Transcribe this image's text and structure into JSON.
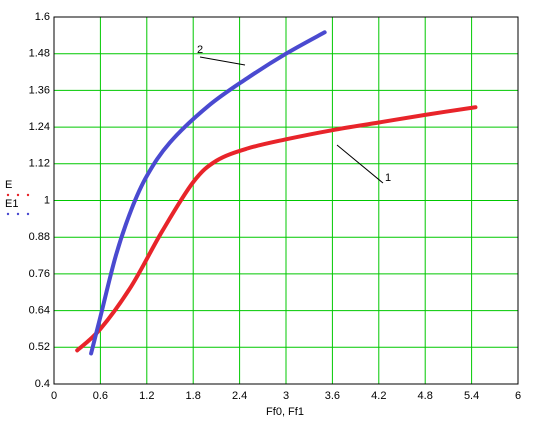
{
  "chart_data": {
    "type": "line",
    "x_label": "Ff0, Ff1",
    "xlim": [
      0,
      6
    ],
    "xticks": [
      0,
      0.6,
      1.2,
      1.8,
      2.4,
      3,
      3.6,
      4.2,
      4.8,
      5.4,
      6
    ],
    "ylim": [
      0.4,
      1.6
    ],
    "yticks": [
      0.4,
      0.52,
      0.64,
      0.76,
      0.88,
      1,
      1.12,
      1.24,
      1.36,
      1.48,
      1.6
    ],
    "grid": true,
    "grid_color": "#00c800",
    "series": [
      {
        "name": "E",
        "color": "#e8242a",
        "x": [
          0.3,
          0.6,
          1.0,
          1.4,
          1.8,
          2.1,
          2.5,
          3.0,
          3.6,
          4.2,
          4.8,
          5.45
        ],
        "values": [
          0.51,
          0.58,
          0.72,
          0.9,
          1.06,
          1.13,
          1.17,
          1.2,
          1.23,
          1.255,
          1.28,
          1.305
        ]
      },
      {
        "name": "E1",
        "color": "#4a4ad0",
        "x": [
          0.48,
          0.6,
          0.8,
          1.0,
          1.2,
          1.5,
          2.0,
          2.5,
          3.0,
          3.5
        ],
        "values": [
          0.5,
          0.62,
          0.82,
          0.97,
          1.08,
          1.19,
          1.31,
          1.4,
          1.48,
          1.55
        ]
      }
    ],
    "annotations": [
      "1",
      "2"
    ]
  }
}
